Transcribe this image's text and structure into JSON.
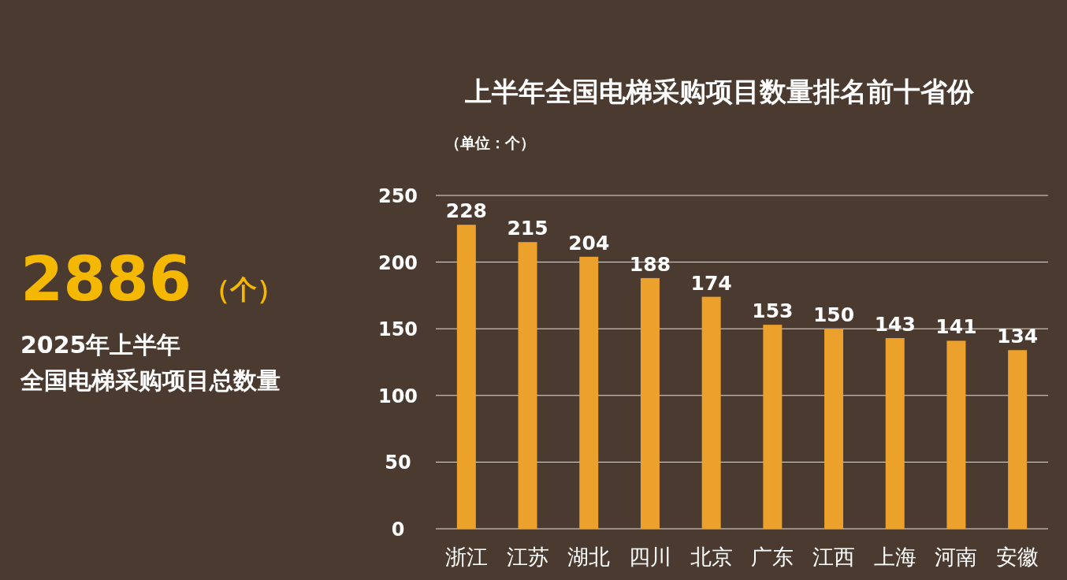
{
  "chart_data": {
    "type": "bar",
    "title": "上半年全国电梯采购项目数量排名前十省份",
    "ylabel": "（单位：个）",
    "categories": [
      "浙江",
      "江苏",
      "湖北",
      "四川",
      "北京",
      "广东",
      "江西",
      "上海",
      "河南",
      "安徽"
    ],
    "values": [
      228,
      215,
      204,
      188,
      174,
      153,
      150,
      143,
      141,
      134
    ],
    "color": "#eda12d",
    "ylim": [
      0,
      250
    ],
    "yticks": [
      0,
      50,
      100,
      150,
      200,
      250
    ],
    "grid": "y",
    "data_labels": true,
    "annotations": [
      "2886",
      "（个）",
      "2025年上半年",
      "全国电梯采购项目总数量"
    ]
  }
}
